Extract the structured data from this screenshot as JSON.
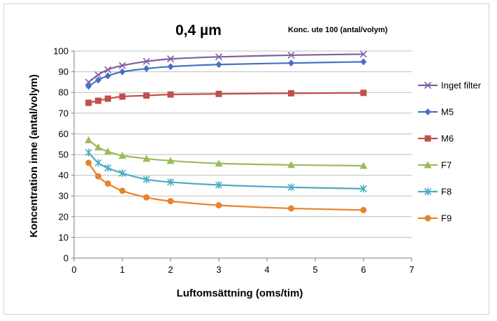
{
  "chart_data": {
    "type": "line",
    "title": "0,4 µm",
    "subtitle": "Konc. ute 100 (antal/volym)",
    "xlabel": "Luftomsättning (oms/tim)",
    "ylabel": "Koncentration inne (antal/volym)",
    "xlim": [
      0,
      7
    ],
    "ylim": [
      0,
      100
    ],
    "x_ticks": [
      "0",
      "1",
      "2",
      "3",
      "4",
      "5",
      "6",
      "7"
    ],
    "y_ticks": [
      "0",
      "10",
      "20",
      "30",
      "40",
      "50",
      "60",
      "70",
      "80",
      "90",
      "100"
    ],
    "grid": "horizontal",
    "legend_position": "right",
    "x": [
      0.3,
      0.5,
      0.7,
      1,
      1.5,
      2,
      3,
      4.5,
      6
    ],
    "series": [
      {
        "name": "Inget filter",
        "color": "#7f5fa0",
        "marker": "x",
        "values": [
          85,
          88.5,
          91,
          93,
          95,
          96.2,
          97.2,
          98,
          98.5
        ]
      },
      {
        "name": "M5",
        "color": "#4472c4",
        "marker": "diamond",
        "values": [
          83,
          86,
          88,
          90,
          91.5,
          92.5,
          93.5,
          94.2,
          94.8
        ]
      },
      {
        "name": "M6",
        "color": "#c0504d",
        "marker": "square",
        "values": [
          75,
          76,
          77,
          78,
          78.5,
          79,
          79.3,
          79.6,
          79.8
        ]
      },
      {
        "name": "F7",
        "color": "#9bbb59",
        "marker": "triangle",
        "values": [
          57,
          53.5,
          51.5,
          49.5,
          48,
          47,
          45.7,
          45,
          44.6
        ]
      },
      {
        "name": "F8",
        "color": "#4bacc6",
        "marker": "star",
        "values": [
          51,
          46,
          43.5,
          41,
          38,
          36.7,
          35.3,
          34.2,
          33.5
        ]
      },
      {
        "name": "F9",
        "color": "#e8832a",
        "marker": "circle",
        "values": [
          46,
          39.5,
          36,
          32.5,
          29.3,
          27.5,
          25.5,
          24,
          23.2
        ]
      }
    ]
  }
}
